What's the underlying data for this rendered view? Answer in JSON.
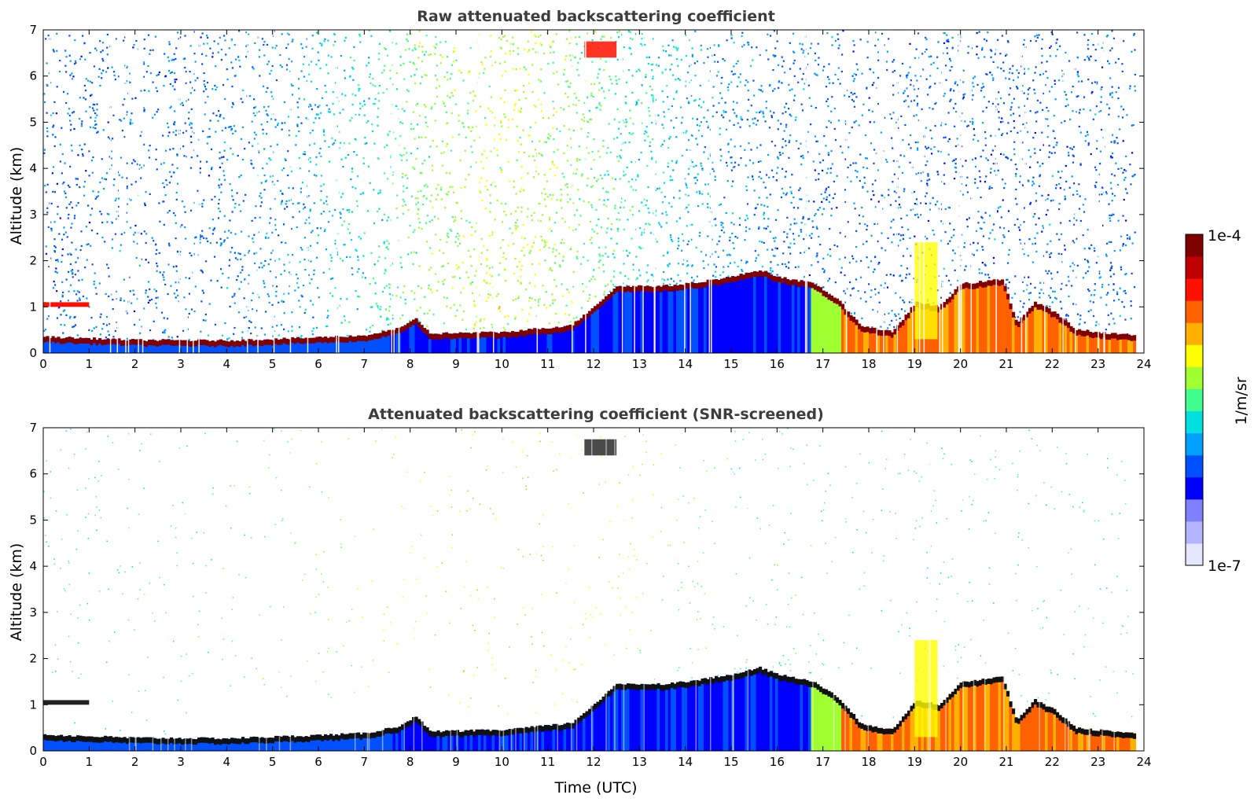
{
  "chart_data": [
    {
      "type": "heatmap",
      "title": "Raw attenuated backscattering coefficient",
      "xlabel": "",
      "ylabel": "Altitude (km)",
      "xlim": [
        0,
        24
      ],
      "ylim": [
        0,
        7
      ],
      "xticks": [
        "0",
        "1",
        "2",
        "3",
        "4",
        "5",
        "6",
        "7",
        "8",
        "9",
        "10",
        "11",
        "12",
        "13",
        "14",
        "15",
        "16",
        "17",
        "18",
        "19",
        "20",
        "21",
        "22",
        "23",
        "24"
      ],
      "yticks": [
        "0",
        "1",
        "2",
        "3",
        "4",
        "5",
        "6",
        "7"
      ],
      "screened": false,
      "features": {
        "data_end_hour": 23.8,
        "boundary_layer_top_km": [
          [
            0,
            0.35
          ],
          [
            2,
            0.28
          ],
          [
            4,
            0.27
          ],
          [
            5.5,
            0.32
          ],
          [
            7,
            0.38
          ],
          [
            7.8,
            0.55
          ],
          [
            8.1,
            0.75
          ],
          [
            8.4,
            0.42
          ],
          [
            10,
            0.45
          ],
          [
            11.5,
            0.6
          ],
          [
            12.5,
            1.45
          ],
          [
            13.5,
            1.45
          ],
          [
            14,
            1.5
          ],
          [
            15,
            1.65
          ],
          [
            15.6,
            1.8
          ],
          [
            16,
            1.65
          ],
          [
            16.8,
            1.5
          ],
          [
            17.3,
            1.15
          ],
          [
            17.8,
            0.6
          ],
          [
            18.5,
            0.45
          ],
          [
            19,
            1.1
          ],
          [
            19.5,
            1.0
          ],
          [
            20,
            1.5
          ],
          [
            20.5,
            1.55
          ],
          [
            20.9,
            1.6
          ],
          [
            21.2,
            0.65
          ],
          [
            21.6,
            1.1
          ],
          [
            22,
            0.9
          ],
          [
            22.5,
            0.5
          ],
          [
            23,
            0.45
          ],
          [
            23.8,
            0.38
          ]
        ],
        "elevated_layer_early": {
          "x": [
            0,
            1
          ],
          "altitude_km": 1.05
        },
        "cirrus_patch": {
          "x": [
            11.8,
            12.5
          ],
          "altitude_km": [
            6.4,
            6.75
          ]
        },
        "convective_plume": {
          "x": [
            19.0,
            19.5
          ],
          "altitude_km": [
            0.3,
            2.4
          ]
        }
      }
    },
    {
      "type": "heatmap",
      "title": "Attenuated backscattering coefficient (SNR-screened)",
      "xlabel": "Time (UTC)",
      "ylabel": "Altitude (km)",
      "xlim": [
        0,
        24
      ],
      "ylim": [
        0,
        7
      ],
      "xticks": [
        "0",
        "1",
        "2",
        "3",
        "4",
        "5",
        "6",
        "7",
        "8",
        "9",
        "10",
        "11",
        "12",
        "13",
        "14",
        "15",
        "16",
        "17",
        "18",
        "19",
        "20",
        "21",
        "22",
        "23",
        "24"
      ],
      "yticks": [
        "0",
        "1",
        "2",
        "3",
        "4",
        "5",
        "6",
        "7"
      ],
      "screened": true
    }
  ],
  "colorbar": {
    "label": "1/m/sr",
    "max_label": "1e-4",
    "min_label": "1e-7",
    "scale": "log",
    "range": [
      1e-07,
      0.0001
    ],
    "colors": [
      "#e6e6ff",
      "#b3b3ff",
      "#8080ff",
      "#0000ff",
      "#0050ff",
      "#00a0ff",
      "#00e0e0",
      "#40ff90",
      "#a0ff30",
      "#ffff00",
      "#ffb000",
      "#ff6000",
      "#ff1000",
      "#c00000",
      "#800000"
    ]
  }
}
